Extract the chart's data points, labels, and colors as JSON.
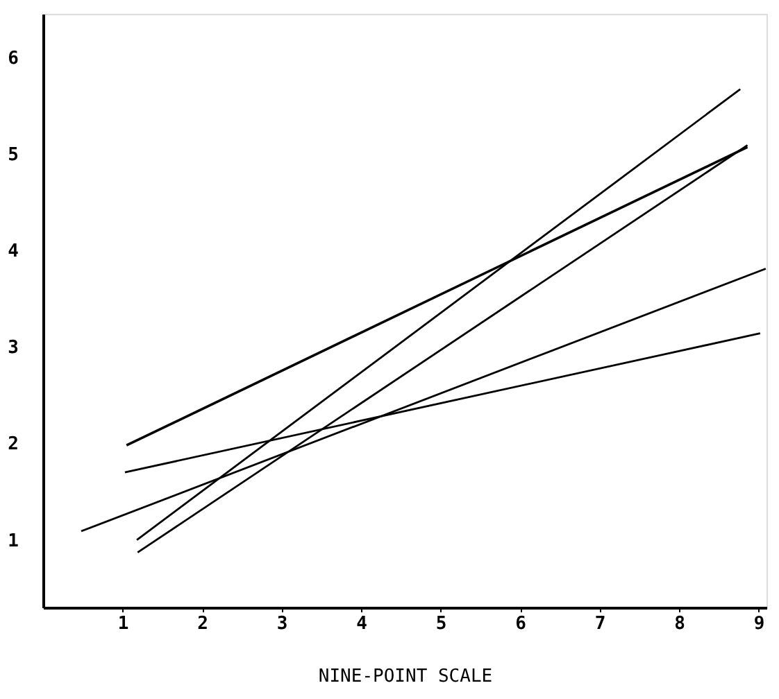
{
  "chart_data": {
    "type": "line",
    "xlabel": "NINE-POINT SCALE",
    "xlim": [
      0,
      9.1
    ],
    "ylim": [
      0.3,
      6.45
    ],
    "xticks": [
      1,
      2,
      3,
      4,
      5,
      6,
      7,
      8,
      9
    ],
    "yticks": [
      1,
      2,
      3,
      4,
      5,
      6
    ],
    "grid": false,
    "legend": false,
    "marker": "none",
    "line_style": "solid",
    "series": [
      {
        "color": "#000000",
        "x": [
          1.05,
          8.86
        ],
        "values": [
          1.98,
          5.07
        ]
      },
      {
        "color": "#000000",
        "x": [
          1.03,
          9.02
        ],
        "values": [
          1.7,
          3.14
        ]
      },
      {
        "color": "#000000",
        "x": [
          0.48,
          9.09
        ],
        "values": [
          1.09,
          3.81
        ]
      },
      {
        "color": "#000000",
        "x": [
          1.18,
          8.77
        ],
        "values": [
          1.0,
          5.67
        ]
      },
      {
        "color": "#000000",
        "x": [
          1.19,
          8.86
        ],
        "values": [
          0.87,
          5.09
        ]
      }
    ]
  }
}
